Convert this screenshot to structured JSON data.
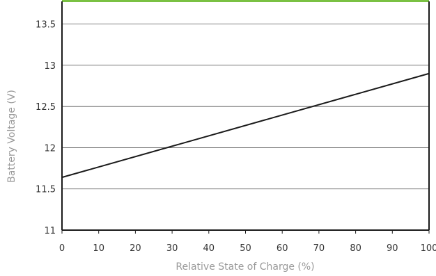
{
  "chart_data": {
    "type": "line",
    "xlabel": "Relative State of Charge (%)",
    "ylabel": "Battery Voltage (V)",
    "xlim": [
      0,
      100
    ],
    "ylim": [
      11,
      13.75
    ],
    "x_ticks": [
      0,
      10,
      20,
      30,
      40,
      50,
      60,
      70,
      80,
      90,
      100
    ],
    "x_tick_labels": [
      "0",
      "10",
      "20",
      "30",
      "40",
      "50",
      "60",
      "70",
      "80",
      "90",
      "100"
    ],
    "y_ticks": [
      11,
      11.5,
      12,
      12.5,
      13,
      13.5
    ],
    "y_tick_labels": [
      "11",
      "11.5",
      "12",
      "12.5",
      "13",
      "13.5"
    ],
    "grid": "horizontal",
    "colors": {
      "line": "#1a1a1a",
      "grid": "#555555",
      "accent_top": "#7ac143",
      "axis_title": "#9a9a9a"
    },
    "series": [
      {
        "x": [
          0,
          100
        ],
        "y": [
          11.64,
          12.9
        ]
      }
    ]
  }
}
